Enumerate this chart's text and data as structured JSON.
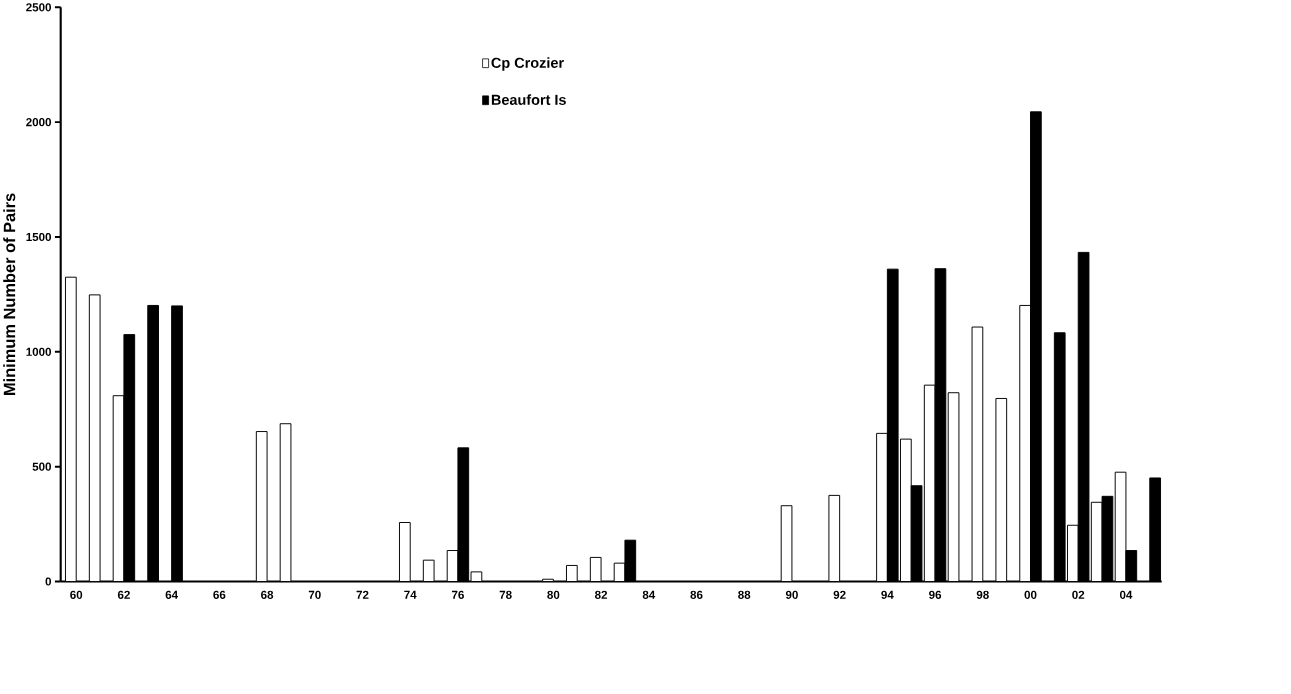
{
  "chart_data": {
    "type": "bar",
    "ylabel": "Minimum Number of Pairs",
    "categories": [
      "60",
      null,
      "62",
      null,
      "64",
      null,
      "66",
      null,
      "68",
      null,
      "70",
      null,
      "72",
      null,
      "74",
      null,
      "76",
      null,
      "78",
      null,
      "80",
      null,
      "82",
      null,
      "84",
      null,
      "86",
      null,
      "88",
      null,
      "90",
      null,
      "92",
      null,
      "94",
      null,
      "96",
      null,
      "98",
      null,
      "00",
      null,
      "02",
      null,
      "04",
      null
    ],
    "series": [
      {
        "name": "Cp Crozier",
        "color": "#ffffff",
        "values": [
          1325,
          1248,
          809,
          null,
          null,
          null,
          null,
          null,
          653,
          687,
          null,
          null,
          null,
          null,
          257,
          93,
          135,
          42,
          null,
          null,
          10,
          70,
          105,
          80,
          null,
          null,
          null,
          null,
          null,
          null,
          330,
          null,
          375,
          null,
          645,
          620,
          855,
          822,
          1108,
          797,
          1202,
          null,
          245,
          345,
          476,
          null
        ]
      },
      {
        "name": "Beaufort Is",
        "color": "#000000",
        "values": [
          null,
          null,
          1075,
          1202,
          1200,
          null,
          null,
          null,
          null,
          null,
          null,
          null,
          null,
          null,
          null,
          null,
          582,
          null,
          null,
          null,
          null,
          null,
          null,
          180,
          null,
          null,
          null,
          null,
          null,
          null,
          null,
          null,
          null,
          null,
          1360,
          417,
          1362,
          null,
          null,
          null,
          2045,
          1083,
          1433,
          371,
          135,
          451
        ]
      }
    ],
    "ylim": [
      0,
      2500
    ],
    "yticks": [
      0,
      500,
      1000,
      1500,
      2000,
      2500
    ],
    "legend": "top"
  }
}
